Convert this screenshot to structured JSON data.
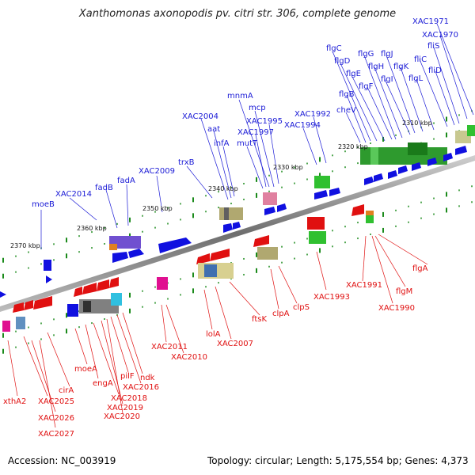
{
  "title": "Xanthomonas axonopodis pv. citri str. 306, complete genome",
  "accession": "Accession: NC_003919",
  "summary": "Topology: circular; Length: 5,175,554 bp; Genes: 4,373",
  "kbp_labels": [
    "2310 kbp",
    "2320 kbp",
    "2330 kbp",
    "2340 kbp",
    "2350 kbp",
    "2360 kbp",
    "2370 kbp"
  ],
  "upper_gene_labels": [
    "moeB",
    "XAC2014",
    "fadB",
    "fadA",
    "XAC2009",
    "trxB",
    "XAC2004",
    "aat",
    "infA",
    "mnmA",
    "mutT",
    "XAC1997",
    "mcp",
    "XAC1995",
    "XAC1994",
    "XAC1992",
    "cheV",
    "flgB",
    "flgC",
    "flgD",
    "flgE",
    "flgF",
    "flgG",
    "flgH",
    "flgI",
    "flgJ",
    "flgK",
    "flgL",
    "fliC",
    "fliD",
    "fliS",
    "XAC1970",
    "XAC1971"
  ],
  "lower_gene_labels": [
    "xthA2",
    "XAC2025",
    "XAC2026",
    "XAC2027",
    "cirA",
    "moeA",
    "engA",
    "XAC2018",
    "XAC2019",
    "XAC2020",
    "pilF",
    "XAC2016",
    "ndk",
    "XAC2011",
    "XAC2010",
    "lolA",
    "XAC2007",
    "ftsK",
    "clpA",
    "clpS",
    "XAC1993",
    "XAC1991",
    "XAC1990",
    "flgM",
    "flgA"
  ],
  "colors": {
    "plus_strand": "#0000ff",
    "minus_strand": "#ff0000",
    "backbone": "#888888",
    "tick": "#1a8a1a"
  }
}
